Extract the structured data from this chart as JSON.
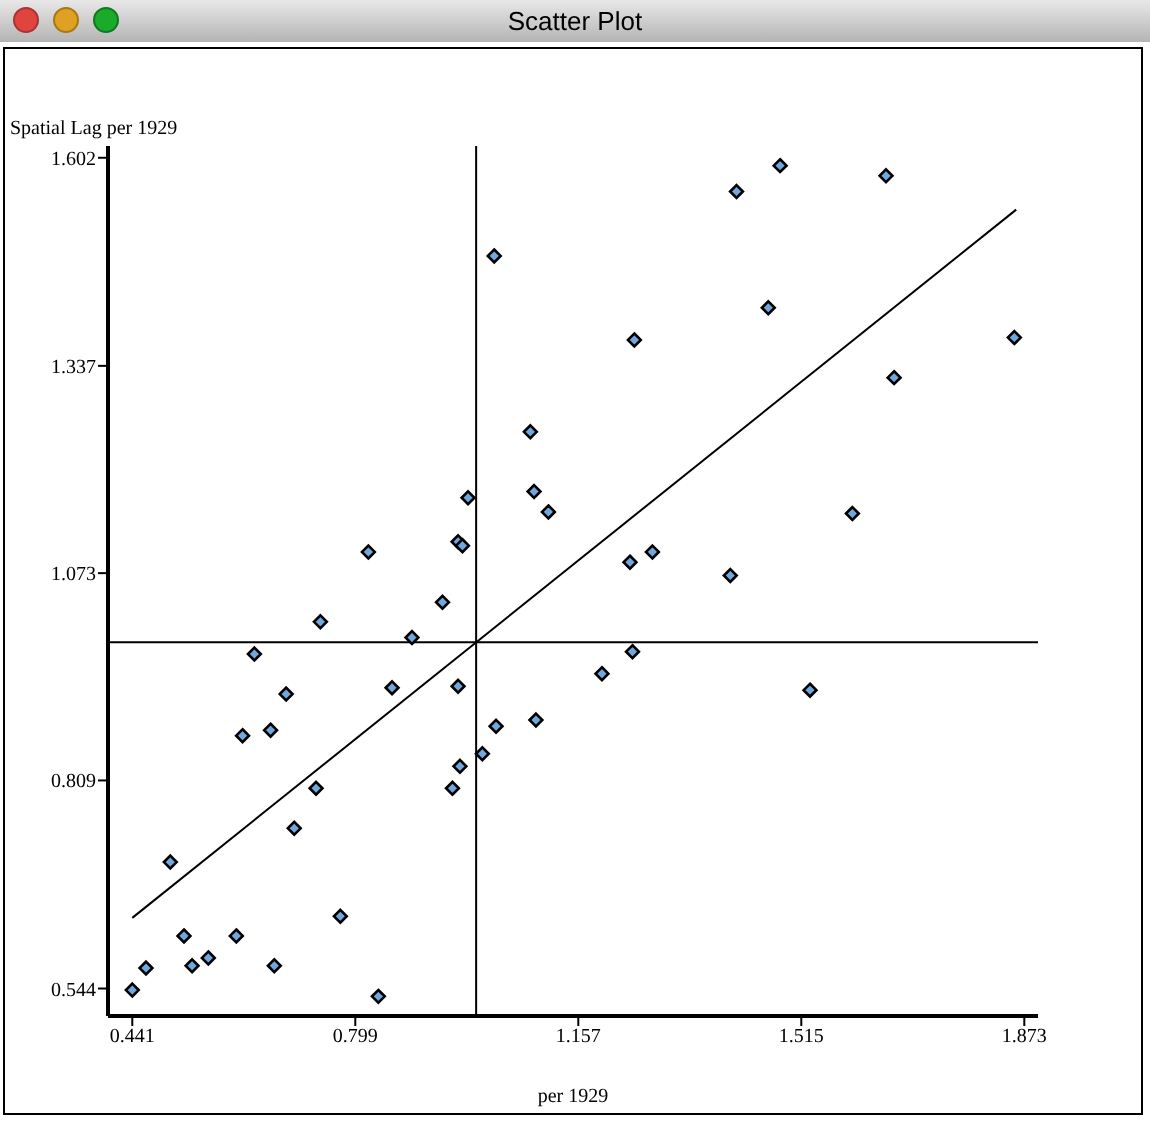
{
  "chart_data": {
    "type": "scatter",
    "title": "Scatter Plot",
    "xlabel": "per 1929",
    "ylabel": "Spatial Lag per 1929",
    "xlim": [
      0.402,
      1.895
    ],
    "ylim": [
      0.509,
      1.617
    ],
    "xticks": [
      0.441,
      0.799,
      1.157,
      1.515,
      1.873
    ],
    "yticks": [
      0.544,
      0.809,
      1.073,
      1.337,
      1.602
    ],
    "grid": false,
    "ref_lines": [
      {
        "axis": "x",
        "value": 0.993,
        "color": "#000000"
      },
      {
        "axis": "y",
        "value": 0.985,
        "color": "#000000"
      }
    ],
    "series": [
      {
        "color": "#6fa8dc",
        "marker": "diamond",
        "x": [
          0.441,
          0.463,
          0.502,
          0.524,
          0.537,
          0.563,
          0.608,
          0.618,
          0.637,
          0.663,
          0.669,
          0.688,
          0.701,
          0.736,
          0.743,
          0.775,
          0.82,
          0.836,
          0.858,
          0.89,
          0.939,
          0.955,
          0.964,
          0.967,
          0.964,
          0.971,
          0.98,
          1.003,
          1.022,
          1.025,
          1.08,
          1.086,
          1.089,
          1.109,
          1.195,
          1.247,
          1.24,
          1.244,
          1.276,
          1.401,
          1.411,
          1.462,
          1.481,
          1.529,
          1.597,
          1.651,
          1.664,
          1.857
        ],
        "values": [
          0.542,
          0.57,
          0.705,
          0.611,
          0.573,
          0.583,
          0.611,
          0.866,
          0.97,
          0.873,
          0.573,
          0.919,
          0.748,
          0.799,
          1.011,
          0.636,
          1.1,
          0.534,
          0.927,
          0.991,
          1.036,
          0.799,
          0.929,
          0.827,
          1.113,
          1.108,
          1.169,
          0.843,
          1.477,
          0.878,
          1.253,
          1.177,
          0.886,
          1.151,
          0.945,
          1.37,
          1.087,
          0.973,
          1.1,
          1.07,
          1.559,
          1.411,
          1.592,
          0.924,
          1.149,
          1.579,
          1.322,
          1.373
        ]
      },
      {
        "type": "line",
        "color": "#000000",
        "marker": "none",
        "line_style": "solid",
        "x": [
          0.441,
          1.86
        ],
        "values": [
          0.634,
          1.536
        ]
      }
    ]
  }
}
